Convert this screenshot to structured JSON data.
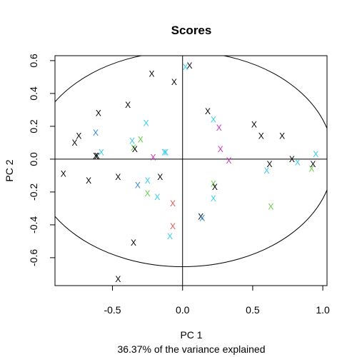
{
  "chart_data": {
    "type": "scatter",
    "title": "Scores",
    "xlabel": "PC 1",
    "xlabel_sub": "36.37% of the variance explained",
    "ylabel": "PC 2",
    "xlim": [
      -0.91,
      1.03
    ],
    "ylim": [
      -0.77,
      0.63
    ],
    "x_ticks": [
      -0.5,
      0.0,
      0.5,
      1.0
    ],
    "x_tick_labels": [
      "-0.5",
      "0.0",
      "0.5",
      "1.0"
    ],
    "y_ticks": [
      -0.6,
      -0.4,
      -0.2,
      0.0,
      0.2,
      0.4,
      0.6
    ],
    "y_tick_labels": [
      "-0.6",
      "-0.4",
      "-0.2",
      "0.0",
      "0.2",
      "0.4",
      "0.6"
    ],
    "grid": false,
    "reference_lines": [
      {
        "axis": "x",
        "value": 0
      },
      {
        "axis": "y",
        "value": 0
      }
    ],
    "ellipse": {
      "center": [
        0.0,
        0.0
      ],
      "rx": 1.075,
      "ry": 0.655
    },
    "marker": "X",
    "colors": {
      "black": "#000000",
      "cyan": "#33ccee",
      "blue": "#3388dd",
      "green": "#66cc44",
      "magenta": "#cc33bb",
      "red": "#dd5555"
    },
    "points": [
      {
        "x": -0.22,
        "y": 0.52,
        "color": "black"
      },
      {
        "x": -0.06,
        "y": 0.47,
        "color": "black"
      },
      {
        "x": 0.02,
        "y": 0.56,
        "color": "cyan"
      },
      {
        "x": 0.05,
        "y": 0.57,
        "color": "black"
      },
      {
        "x": -0.39,
        "y": 0.33,
        "color": "black"
      },
      {
        "x": -0.6,
        "y": 0.28,
        "color": "black"
      },
      {
        "x": -0.62,
        "y": 0.16,
        "color": "blue"
      },
      {
        "x": -0.74,
        "y": 0.14,
        "color": "black"
      },
      {
        "x": -0.77,
        "y": 0.1,
        "color": "black"
      },
      {
        "x": -0.62,
        "y": 0.02,
        "color": "black"
      },
      {
        "x": -0.58,
        "y": 0.04,
        "color": "cyan"
      },
      {
        "x": -0.61,
        "y": 0.02,
        "color": "black"
      },
      {
        "x": -0.26,
        "y": 0.22,
        "color": "cyan"
      },
      {
        "x": -0.36,
        "y": 0.11,
        "color": "cyan"
      },
      {
        "x": -0.3,
        "y": 0.12,
        "color": "green"
      },
      {
        "x": -0.35,
        "y": 0.07,
        "color": "green"
      },
      {
        "x": -0.34,
        "y": 0.06,
        "color": "black"
      },
      {
        "x": -0.13,
        "y": 0.04,
        "color": "cyan"
      },
      {
        "x": -0.12,
        "y": 0.04,
        "color": "cyan"
      },
      {
        "x": -0.21,
        "y": 0.01,
        "color": "magenta"
      },
      {
        "x": -0.85,
        "y": -0.09,
        "color": "black"
      },
      {
        "x": -0.67,
        "y": -0.13,
        "color": "black"
      },
      {
        "x": -0.46,
        "y": -0.11,
        "color": "black"
      },
      {
        "x": -0.25,
        "y": -0.13,
        "color": "cyan"
      },
      {
        "x": -0.32,
        "y": -0.16,
        "color": "blue"
      },
      {
        "x": -0.16,
        "y": -0.11,
        "color": "black"
      },
      {
        "x": -0.25,
        "y": -0.21,
        "color": "green"
      },
      {
        "x": -0.18,
        "y": -0.23,
        "color": "cyan"
      },
      {
        "x": -0.07,
        "y": -0.27,
        "color": "red"
      },
      {
        "x": -0.07,
        "y": -0.41,
        "color": "red"
      },
      {
        "x": -0.09,
        "y": -0.47,
        "color": "cyan"
      },
      {
        "x": -0.35,
        "y": -0.51,
        "color": "black"
      },
      {
        "x": -0.46,
        "y": -0.73,
        "color": "black"
      },
      {
        "x": 0.18,
        "y": 0.29,
        "color": "black"
      },
      {
        "x": 0.22,
        "y": 0.24,
        "color": "cyan"
      },
      {
        "x": 0.26,
        "y": 0.19,
        "color": "magenta"
      },
      {
        "x": 0.27,
        "y": 0.06,
        "color": "magenta"
      },
      {
        "x": 0.33,
        "y": -0.01,
        "color": "magenta"
      },
      {
        "x": 0.22,
        "y": -0.15,
        "color": "green"
      },
      {
        "x": 0.23,
        "y": -0.17,
        "color": "black"
      },
      {
        "x": 0.22,
        "y": -0.24,
        "color": "cyan"
      },
      {
        "x": 0.13,
        "y": -0.35,
        "color": "black"
      },
      {
        "x": 0.14,
        "y": -0.36,
        "color": "blue"
      },
      {
        "x": 0.51,
        "y": 0.21,
        "color": "black"
      },
      {
        "x": 0.56,
        "y": 0.14,
        "color": "black"
      },
      {
        "x": 0.71,
        "y": 0.14,
        "color": "black"
      },
      {
        "x": 0.62,
        "y": -0.03,
        "color": "black"
      },
      {
        "x": 0.6,
        "y": -0.07,
        "color": "cyan"
      },
      {
        "x": 0.78,
        "y": 0.0,
        "color": "black"
      },
      {
        "x": 0.82,
        "y": -0.02,
        "color": "cyan"
      },
      {
        "x": 0.93,
        "y": -0.03,
        "color": "black"
      },
      {
        "x": 0.92,
        "y": -0.06,
        "color": "green"
      },
      {
        "x": 0.95,
        "y": 0.03,
        "color": "cyan"
      },
      {
        "x": 0.63,
        "y": -0.29,
        "color": "green"
      }
    ]
  }
}
